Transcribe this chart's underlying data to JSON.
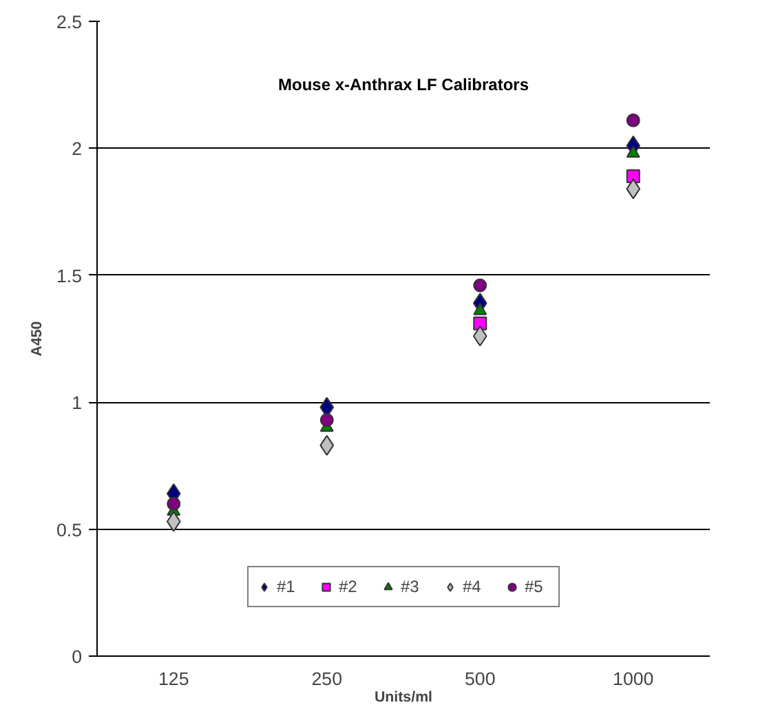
{
  "chart_data": {
    "type": "scatter",
    "title": "Mouse x-Anthrax LF Calibrators",
    "xlabel": "Units/ml",
    "ylabel": "A450",
    "categories": [
      "125",
      "250",
      "500",
      "1000"
    ],
    "series": [
      {
        "name": "#1",
        "color": "#000080",
        "marker": "diamond",
        "values": [
          0.64,
          0.98,
          1.39,
          2.01
        ]
      },
      {
        "name": "#2",
        "color": "#ff00ff",
        "marker": "square",
        "values": [
          null,
          null,
          1.31,
          1.89
        ]
      },
      {
        "name": "#3",
        "color": "#008000",
        "marker": "triangle",
        "values": [
          0.57,
          0.9,
          1.36,
          1.98
        ]
      },
      {
        "name": "#4",
        "color": "#c0c0c0",
        "marker": "diamond",
        "values": [
          0.53,
          0.83,
          1.26,
          1.84
        ]
      },
      {
        "name": "#5",
        "color": "#800080",
        "marker": "circle",
        "values": [
          0.6,
          0.93,
          1.46,
          2.11
        ]
      }
    ],
    "ylim": [
      0,
      2.5
    ],
    "yticks": [
      0,
      0.5,
      1,
      1.5,
      2,
      2.5
    ],
    "grid": "y",
    "legend": "bottom"
  }
}
